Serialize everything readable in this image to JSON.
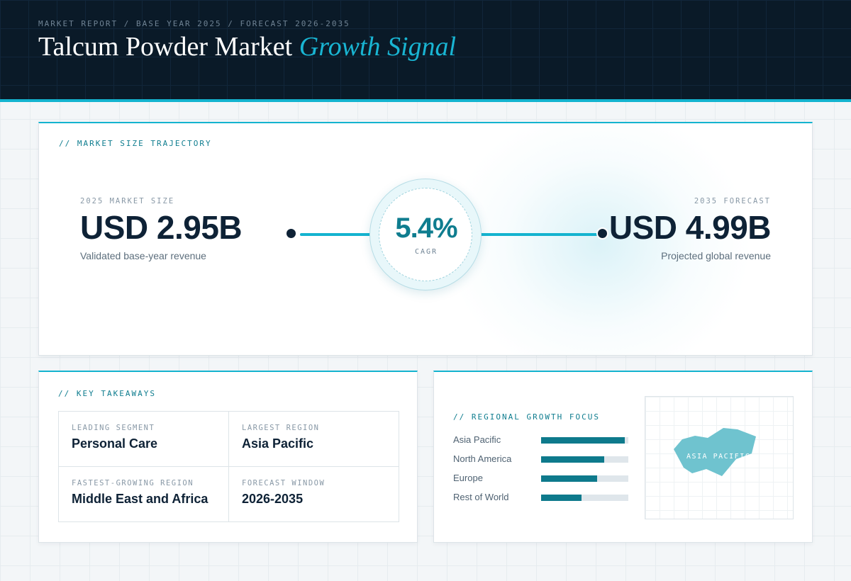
{
  "header": {
    "eyebrow": "MARKET REPORT / BASE YEAR 2025 / FORECAST 2026-2035",
    "title_main": "Talcum Powder Market",
    "title_accent": "Growth Signal"
  },
  "trajectory": {
    "section_label": "// MARKET SIZE TRAJECTORY",
    "start": {
      "label": "2025 MARKET SIZE",
      "value": "USD 2.95B",
      "caption": "Validated base-year revenue"
    },
    "cagr": {
      "value": "5.4%",
      "label": "CAGR"
    },
    "end": {
      "label": "2035 FORECAST",
      "value": "USD 4.99B",
      "caption": "Projected global revenue"
    }
  },
  "takeaways": {
    "section_label": "// KEY TAKEAWAYS",
    "items": [
      {
        "key": "LEADING SEGMENT",
        "value": "Personal Care"
      },
      {
        "key": "LARGEST REGION",
        "value": "Asia Pacific"
      },
      {
        "key": "FASTEST-GROWING REGION",
        "value": "Middle East and Africa"
      },
      {
        "key": "FORECAST WINDOW",
        "value": "2026-2035"
      }
    ]
  },
  "regional": {
    "section_label": "// REGIONAL GROWTH FOCUS",
    "bars": [
      {
        "name": "Asia Pacific",
        "share": 0.96
      },
      {
        "name": "North America",
        "share": 0.72
      },
      {
        "name": "Europe",
        "share": 0.64
      },
      {
        "name": "Rest of World",
        "share": 0.46
      }
    ],
    "map_label": "ASIA PACIFIC",
    "bar_color": "#0e7a8c",
    "map_color": "#6fc3cf"
  },
  "colors": {
    "accent": "#14b3cf",
    "navy": "#0a1a28",
    "cagr_text": "#0f7d8f"
  }
}
